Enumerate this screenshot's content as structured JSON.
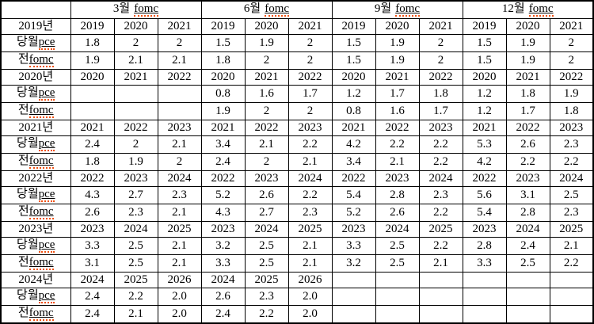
{
  "table": {
    "corner_label": "",
    "header": {
      "groups": [
        {
          "prefix": "3월",
          "word": "fomc"
        },
        {
          "prefix": "6월",
          "word": "fomc"
        },
        {
          "prefix": "9월",
          "word": "fomc"
        },
        {
          "prefix": "12월",
          "word": "fomc"
        }
      ]
    },
    "row_labels": {
      "pce": {
        "prefix": "당월",
        "word": "pce"
      },
      "fomc": {
        "prefix": "전",
        "word": "fomc"
      }
    },
    "squiggle_color": "#f05214",
    "border_color": "#000000",
    "blocks": [
      {
        "label": "2019년",
        "groups": [
          {
            "years": [
              "2019",
              "2020",
              "2021"
            ],
            "pce": [
              "1.8",
              "2",
              "2"
            ],
            "fomc": [
              "1.9",
              "2.1",
              "2.1"
            ]
          },
          {
            "years": [
              "2019",
              "2020",
              "2021"
            ],
            "pce": [
              "1.5",
              "1.9",
              "2"
            ],
            "fomc": [
              "1.8",
              "2",
              "2"
            ]
          },
          {
            "years": [
              "2019",
              "2020",
              "2021"
            ],
            "pce": [
              "1.5",
              "1.9",
              "2"
            ],
            "fomc": [
              "1.5",
              "1.9",
              "2"
            ]
          },
          {
            "years": [
              "2019",
              "2020",
              "2021"
            ],
            "pce": [
              "1.5",
              "1.9",
              "2"
            ],
            "fomc": [
              "1.5",
              "1.9",
              "2"
            ]
          }
        ]
      },
      {
        "label": "2020년",
        "groups": [
          {
            "years": [
              "2020",
              "2021",
              "2022"
            ],
            "pce": [
              "",
              "",
              ""
            ],
            "fomc": [
              "",
              "",
              ""
            ]
          },
          {
            "years": [
              "2020",
              "2021",
              "2022"
            ],
            "pce": [
              "0.8",
              "1.6",
              "1.7"
            ],
            "fomc": [
              "1.9",
              "2",
              "2"
            ]
          },
          {
            "years": [
              "2020",
              "2021",
              "2022"
            ],
            "pce": [
              "1.2",
              "1.7",
              "1.8"
            ],
            "fomc": [
              "0.8",
              "1.6",
              "1.7"
            ]
          },
          {
            "years": [
              "2020",
              "2021",
              "2022"
            ],
            "pce": [
              "1.2",
              "1.8",
              "1.9"
            ],
            "fomc": [
              "1.2",
              "1.7",
              "1.8"
            ]
          }
        ]
      },
      {
        "label": "2021년",
        "groups": [
          {
            "years": [
              "2021",
              "2022",
              "2023"
            ],
            "pce": [
              "2.4",
              "2",
              "2.1"
            ],
            "fomc": [
              "1.8",
              "1.9",
              "2"
            ]
          },
          {
            "years": [
              "2021",
              "2022",
              "2023"
            ],
            "pce": [
              "3.4",
              "2.1",
              "2.2"
            ],
            "fomc": [
              "2.4",
              "2",
              "2.1"
            ]
          },
          {
            "years": [
              "2021",
              "2022",
              "2023"
            ],
            "pce": [
              "4.2",
              "2.2",
              "2.2"
            ],
            "fomc": [
              "3.4",
              "2.1",
              "2.2"
            ]
          },
          {
            "years": [
              "2021",
              "2022",
              "2023"
            ],
            "pce": [
              "5.3",
              "2.6",
              "2.3"
            ],
            "fomc": [
              "4.2",
              "2.2",
              "2.2"
            ]
          }
        ]
      },
      {
        "label": "2022년",
        "groups": [
          {
            "years": [
              "2022",
              "2023",
              "2024"
            ],
            "pce": [
              "4.3",
              "2.7",
              "2.3"
            ],
            "fomc": [
              "2.6",
              "2.3",
              "2.1"
            ]
          },
          {
            "years": [
              "2022",
              "2023",
              "2024"
            ],
            "pce": [
              "5.2",
              "2.6",
              "2.2"
            ],
            "fomc": [
              "4.3",
              "2.7",
              "2.3"
            ]
          },
          {
            "years": [
              "2022",
              "2023",
              "2024"
            ],
            "pce": [
              "5.4",
              "2.8",
              "2.3"
            ],
            "fomc": [
              "5.2",
              "2.6",
              "2.2"
            ]
          },
          {
            "years": [
              "2022",
              "2023",
              "2024"
            ],
            "pce": [
              "5.6",
              "3.1",
              "2.5"
            ],
            "fomc": [
              "5.4",
              "2.8",
              "2.3"
            ]
          }
        ]
      },
      {
        "label": "2023년",
        "groups": [
          {
            "years": [
              "2023",
              "2024",
              "2025"
            ],
            "pce": [
              "3.3",
              "2.5",
              "2.1"
            ],
            "fomc": [
              "3.1",
              "2.5",
              "2.1"
            ]
          },
          {
            "years": [
              "2023",
              "2024",
              "2025"
            ],
            "pce": [
              "3.2",
              "2.5",
              "2.1"
            ],
            "fomc": [
              "3.3",
              "2.5",
              "2.1"
            ]
          },
          {
            "years": [
              "2023",
              "2024",
              "2025"
            ],
            "pce": [
              "3.3",
              "2.5",
              "2.2"
            ],
            "fomc": [
              "3.2",
              "2.5",
              "2.1"
            ]
          },
          {
            "years": [
              "2023",
              "2024",
              "2025"
            ],
            "pce": [
              "2.8",
              "2.4",
              "2.1"
            ],
            "fomc": [
              "3.3",
              "2.5",
              "2.2"
            ]
          }
        ]
      },
      {
        "label": "2024년",
        "groups": [
          {
            "years": [
              "2024",
              "2025",
              "2026"
            ],
            "pce": [
              "2.4",
              "2.2",
              "2.0"
            ],
            "fomc": [
              "2.4",
              "2.1",
              "2.0"
            ]
          },
          {
            "years": [
              "2024",
              "2025",
              "2026"
            ],
            "pce": [
              "2.6",
              "2.3",
              "2.0"
            ],
            "fomc": [
              "2.4",
              "2.2",
              "2.0"
            ]
          },
          {
            "years": [
              "",
              "",
              ""
            ],
            "pce": [
              "",
              "",
              ""
            ],
            "fomc": [
              "",
              "",
              ""
            ]
          },
          {
            "years": [
              "",
              "",
              ""
            ],
            "pce": [
              "",
              "",
              ""
            ],
            "fomc": [
              "",
              "",
              ""
            ]
          }
        ]
      }
    ]
  }
}
